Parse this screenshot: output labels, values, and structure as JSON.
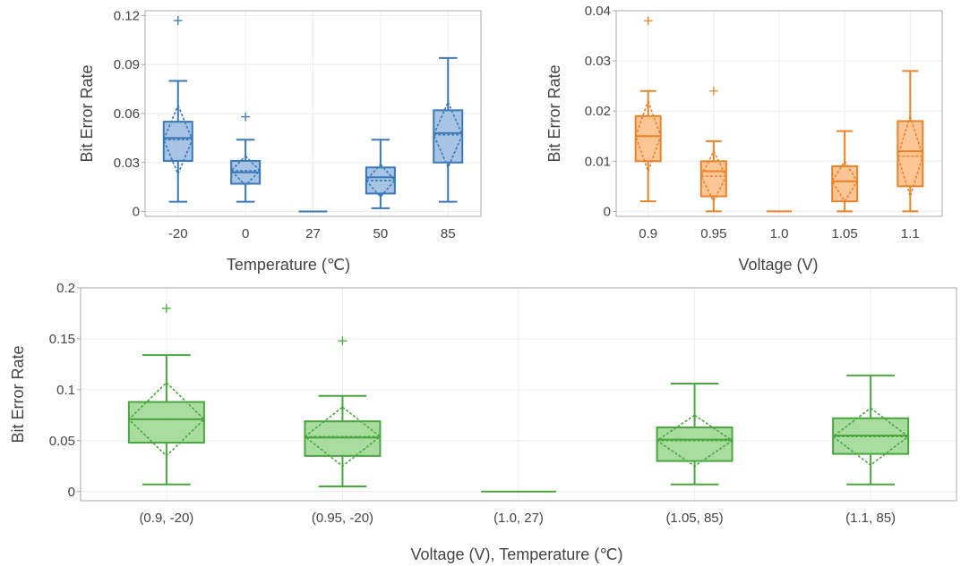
{
  "chart_data": [
    {
      "type": "box",
      "color": "#4f86c6",
      "xlabel": "Temperature (℃)",
      "ylabel": "Bit Error Rate",
      "categories": [
        "-20",
        "0",
        "27",
        "50",
        "85"
      ],
      "ylim": [
        -0.003,
        0.123
      ],
      "yticks": [
        0,
        0.03,
        0.06,
        0.09,
        0.12
      ],
      "ytick_labels": [
        "0",
        "0.03",
        "0.06",
        "0.09",
        "0.12"
      ],
      "grid": true,
      "boxes": [
        {
          "min": 0.006,
          "q1": 0.031,
          "median": 0.045,
          "mean": 0.044,
          "q3": 0.055,
          "max": 0.08,
          "sd": 0.021,
          "outliers": [
            0.117
          ]
        },
        {
          "min": 0.006,
          "q1": 0.017,
          "median": 0.024,
          "mean": 0.025,
          "q3": 0.031,
          "max": 0.044,
          "sd": 0.009,
          "outliers": [
            0.058
          ]
        },
        {
          "min": 0,
          "q1": 0,
          "median": 0,
          "mean": 0,
          "q3": 0,
          "max": 0,
          "sd": 0,
          "outliers": []
        },
        {
          "min": 0.002,
          "q1": 0.011,
          "median": 0.021,
          "mean": 0.019,
          "q3": 0.027,
          "max": 0.044,
          "sd": 0.01,
          "outliers": []
        },
        {
          "min": 0.006,
          "q1": 0.03,
          "median": 0.048,
          "mean": 0.047,
          "q3": 0.062,
          "max": 0.094,
          "sd": 0.02,
          "outliers": []
        }
      ]
    },
    {
      "type": "box",
      "color": "#f28e2b",
      "xlabel": "Voltage (V)",
      "ylabel": "Bit Error Rate",
      "categories": [
        "0.9",
        "0.95",
        "1.0",
        "1.05",
        "1.1"
      ],
      "ylim": [
        -0.001,
        0.04
      ],
      "yticks": [
        0,
        0.01,
        0.02,
        0.03,
        0.04
      ],
      "ytick_labels": [
        "0",
        "0.01",
        "0.02",
        "0.03",
        "0.04"
      ],
      "grid": true,
      "boxes": [
        {
          "min": 0.002,
          "q1": 0.01,
          "median": 0.015,
          "mean": 0.015,
          "q3": 0.019,
          "max": 0.024,
          "sd": 0.007,
          "outliers": [
            0.038
          ]
        },
        {
          "min": 0,
          "q1": 0.003,
          "median": 0.008,
          "mean": 0.007,
          "q3": 0.01,
          "max": 0.014,
          "sd": 0.005,
          "outliers": [
            0.024
          ]
        },
        {
          "min": 0,
          "q1": 0,
          "median": 0,
          "mean": 0,
          "q3": 0,
          "max": 0,
          "sd": 0,
          "outliers": []
        },
        {
          "min": 0,
          "q1": 0.002,
          "median": 0.006,
          "mean": 0.006,
          "q3": 0.009,
          "max": 0.016,
          "sd": 0.004,
          "outliers": []
        },
        {
          "min": 0,
          "q1": 0.005,
          "median": 0.012,
          "mean": 0.011,
          "q3": 0.018,
          "max": 0.028,
          "sd": 0.008,
          "outliers": []
        }
      ]
    },
    {
      "type": "box",
      "color": "#59a14f",
      "xlabel": "Voltage (V), Temperature (℃)",
      "ylabel": "Bit Error Rate",
      "categories": [
        "(0.9, -20)",
        "(0.95, -20)",
        "(1.0, 27)",
        "(1.05, 85)",
        "(1.1, 85)"
      ],
      "ylim": [
        -0.009,
        0.2
      ],
      "yticks": [
        0,
        0.05,
        0.1,
        0.15,
        0.2
      ],
      "ytick_labels": [
        "0",
        "0.05",
        "0.1",
        "0.15",
        "0.2"
      ],
      "grid": true,
      "boxes": [
        {
          "min": 0.007,
          "q1": 0.048,
          "median": 0.071,
          "mean": 0.071,
          "q3": 0.088,
          "max": 0.134,
          "sd": 0.036,
          "outliers": [
            0.18
          ]
        },
        {
          "min": 0.005,
          "q1": 0.035,
          "median": 0.053,
          "mean": 0.054,
          "q3": 0.069,
          "max": 0.094,
          "sd": 0.029,
          "outliers": [
            0.148
          ]
        },
        {
          "min": 0,
          "q1": 0,
          "median": 0,
          "mean": 0,
          "q3": 0,
          "max": 0,
          "sd": 0,
          "outliers": []
        },
        {
          "min": 0.007,
          "q1": 0.03,
          "median": 0.051,
          "mean": 0.05,
          "q3": 0.063,
          "max": 0.106,
          "sd": 0.025,
          "outliers": []
        },
        {
          "min": 0.007,
          "q1": 0.037,
          "median": 0.055,
          "mean": 0.054,
          "q3": 0.072,
          "max": 0.114,
          "sd": 0.028,
          "outliers": []
        }
      ]
    }
  ]
}
